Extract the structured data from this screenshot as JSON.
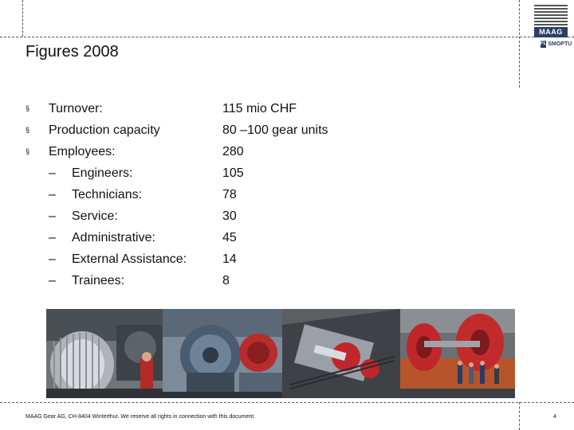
{
  "slide": {
    "title": "Figures 2008",
    "bullet_symbol": "§",
    "sub_bullet_symbol": "–",
    "items": [
      {
        "label": "Turnover:",
        "value": "115 mio CHF",
        "level": 1
      },
      {
        "label": "Production capacity",
        "value": "80 –100 gear units",
        "level": 1
      },
      {
        "label": "Employees:",
        "value": "280",
        "level": 1
      },
      {
        "label": "Engineers:",
        "value": "105",
        "level": 2
      },
      {
        "label": "Technicians:",
        "value": "78",
        "level": 2
      },
      {
        "label": "Service:",
        "value": "30",
        "level": 2
      },
      {
        "label": "Administrative:",
        "value": "45",
        "level": 2
      },
      {
        "label": "External Assistance:",
        "value": "14",
        "level": 2
      },
      {
        "label": "Trainees:",
        "value": "8",
        "level": 2
      }
    ]
  },
  "logo": {
    "brand": "MAAG",
    "subbrand": "SMOPTU",
    "subbrand_mark": "FL"
  },
  "footer": {
    "text": "MAAG Gear AG, CH-8404 Winterthur. We reserve all rights in connection with this document.",
    "page_number": "4"
  },
  "colors": {
    "brand_navy": "#2c3f63",
    "gear_red": "#c0262a"
  },
  "photos": [
    {
      "subject": "large gear shaft close-up",
      "icon": "gear-photo"
    },
    {
      "subject": "gearbox assembly in workshop",
      "icon": "gearbox-photo"
    },
    {
      "subject": "red gearbox internals",
      "icon": "gearbox-photo"
    },
    {
      "subject": "workers with large red gears",
      "icon": "gear-photo"
    }
  ]
}
